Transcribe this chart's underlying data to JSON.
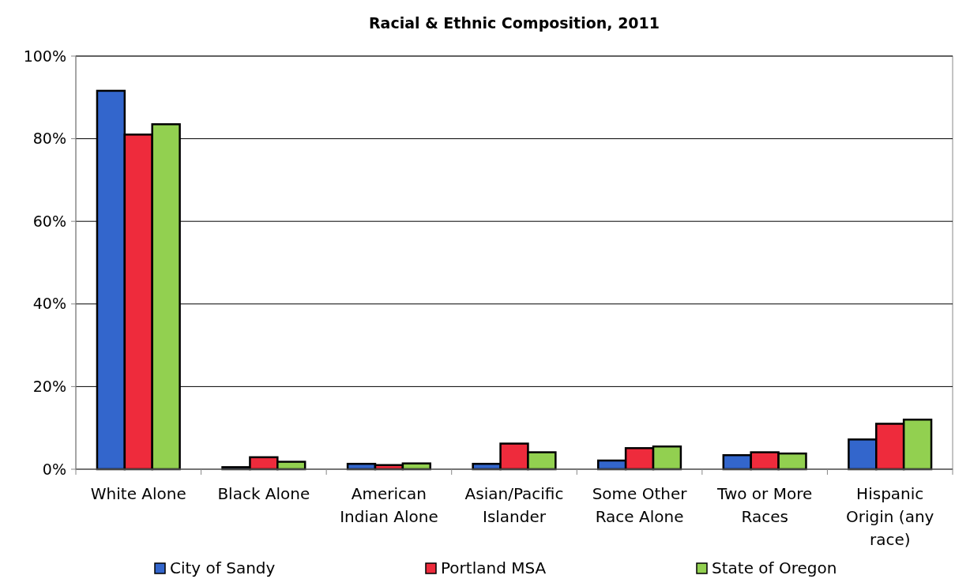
{
  "chart_data": {
    "type": "bar",
    "title": "Racial & Ethnic Composition, 2011",
    "categories": [
      "White Alone",
      "Black Alone",
      "American Indian Alone",
      "Asian/Pacific Islander",
      "Some Other Race Alone",
      "Two or More Races",
      "Hispanic Origin (any race)"
    ],
    "series": [
      {
        "name": "City of Sandy",
        "color": "#3366cc",
        "values": [
          91.6,
          0.5,
          1.3,
          1.3,
          2.1,
          3.4,
          7.2
        ]
      },
      {
        "name": "Portland MSA",
        "color": "#ee2b3c",
        "values": [
          81,
          2.9,
          1.0,
          6.2,
          5.1,
          4.1,
          11.0
        ]
      },
      {
        "name": "State of Oregon",
        "color": "#92d050",
        "values": [
          83.5,
          1.8,
          1.4,
          4.1,
          5.5,
          3.8,
          12.0
        ]
      }
    ],
    "ylim": [
      0,
      100
    ],
    "yticks": [
      {
        "value": 0,
        "label": "0%"
      },
      {
        "value": 20,
        "label": "20%"
      },
      {
        "value": 40,
        "label": "40%"
      },
      {
        "value": 60,
        "label": "60%"
      },
      {
        "value": 80,
        "label": "80%"
      },
      {
        "value": 100,
        "label": "100%"
      }
    ],
    "grid": "y",
    "legend": "bottom"
  }
}
